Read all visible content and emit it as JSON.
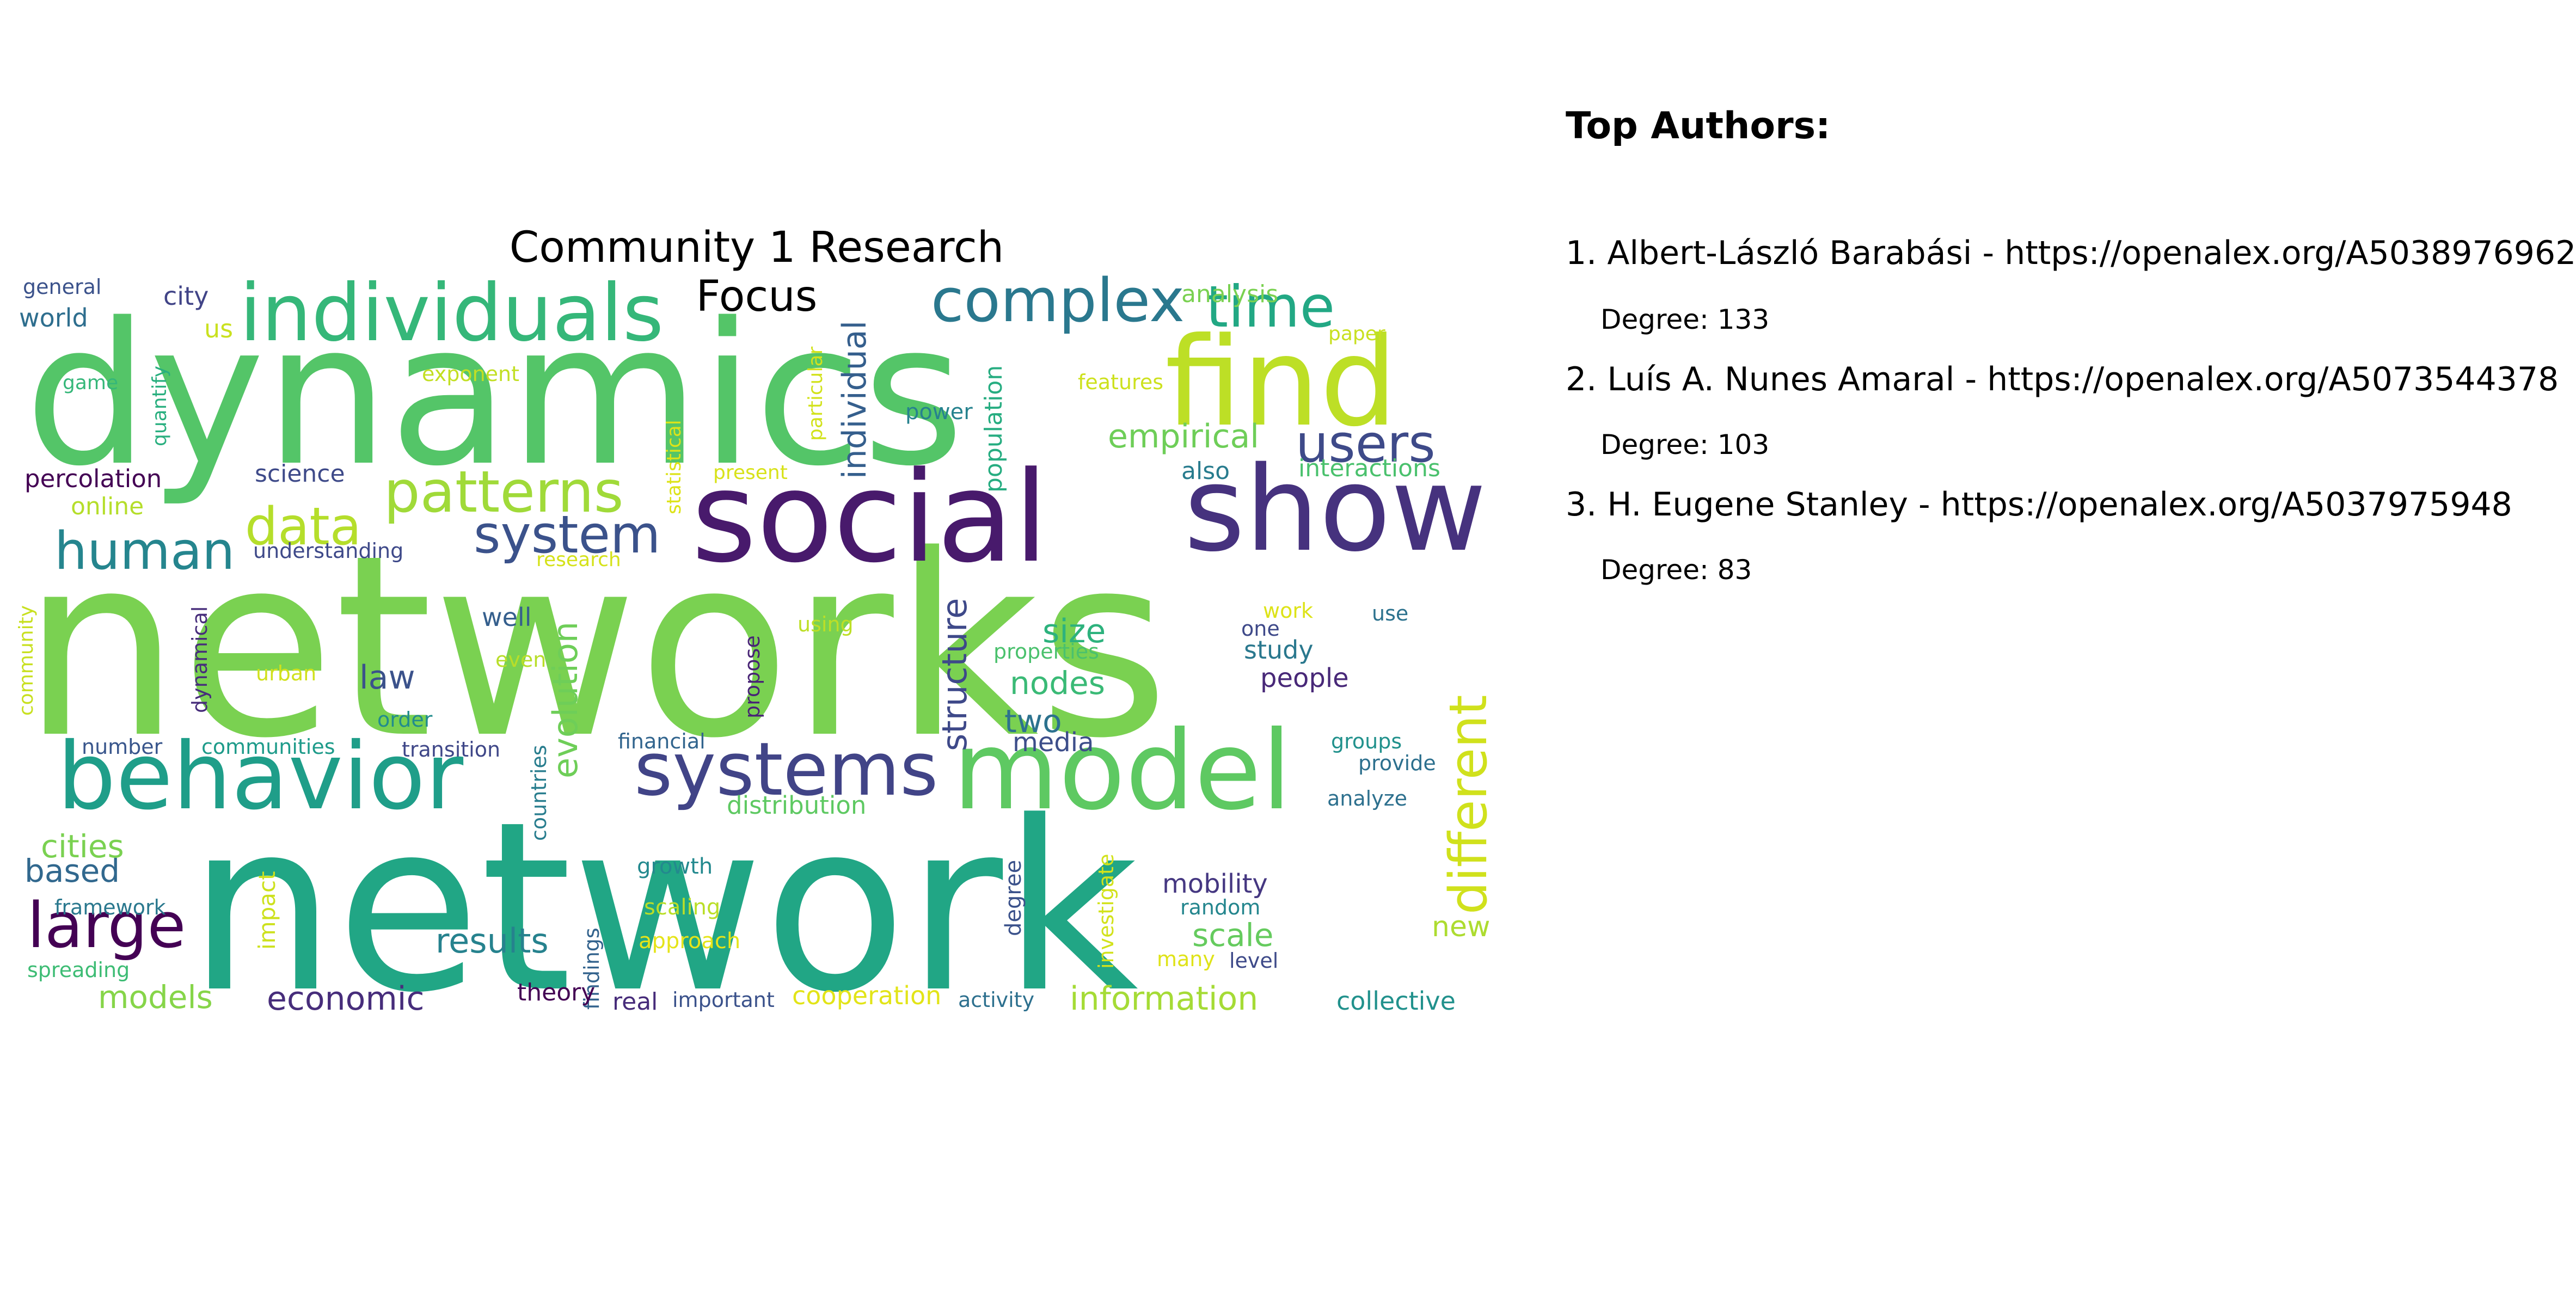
{
  "wordcloud": {
    "title": "Community 1 Research Focus",
    "words": [
      {
        "text": "networks",
        "color": "#7ad151"
      },
      {
        "text": "network",
        "color": "#21a685"
      },
      {
        "text": "dynamics",
        "color": "#54c568"
      },
      {
        "text": "social",
        "color": "#481a6c"
      },
      {
        "text": "show",
        "color": "#46327e"
      },
      {
        "text": "find",
        "color": "#bddf26"
      },
      {
        "text": "individuals",
        "color": "#35b779"
      },
      {
        "text": "complex",
        "color": "#2a788e"
      },
      {
        "text": "time",
        "color": "#22a884"
      },
      {
        "text": "model",
        "color": "#5ec962"
      },
      {
        "text": "behavior",
        "color": "#1f9e89"
      },
      {
        "text": "systems",
        "color": "#414487"
      },
      {
        "text": "patterns",
        "color": "#a0da39"
      },
      {
        "text": "system",
        "color": "#3b528b"
      },
      {
        "text": "users",
        "color": "#3e4a89"
      },
      {
        "text": "human",
        "color": "#25858e"
      },
      {
        "text": "data",
        "color": "#b5de2b"
      },
      {
        "text": "large",
        "color": "#440154"
      },
      {
        "text": "different",
        "color": "#d0e11c"
      },
      {
        "text": "empirical",
        "color": "#6ece58"
      },
      {
        "text": "individual",
        "color": "#355f8d"
      },
      {
        "text": "structure",
        "color": "#3e4989"
      },
      {
        "text": "evolution",
        "color": "#6ece58"
      },
      {
        "text": "results",
        "color": "#26828e"
      },
      {
        "text": "economic",
        "color": "#472d7b"
      },
      {
        "text": "information",
        "color": "#a5db36"
      },
      {
        "text": "cities",
        "color": "#7ad151"
      },
      {
        "text": "based",
        "color": "#31688e"
      },
      {
        "text": "models",
        "color": "#86d549"
      },
      {
        "text": "size",
        "color": "#2db27d"
      },
      {
        "text": "nodes",
        "color": "#3aba76"
      },
      {
        "text": "scale",
        "color": "#65cb5e"
      },
      {
        "text": "mobility",
        "color": "#453781"
      },
      {
        "text": "law",
        "color": "#3b528b"
      },
      {
        "text": "two",
        "color": "#2c728e"
      },
      {
        "text": "media",
        "color": "#3d4e8a"
      },
      {
        "text": "new",
        "color": "#addc30"
      },
      {
        "text": "study",
        "color": "#2a788e"
      },
      {
        "text": "people",
        "color": "#482878"
      },
      {
        "text": "collective",
        "color": "#21918c"
      },
      {
        "text": "cooperation",
        "color": "#e2e418"
      },
      {
        "text": "distribution",
        "color": "#5ec962"
      },
      {
        "text": "percolation",
        "color": "#440154"
      },
      {
        "text": "science",
        "color": "#3e4a89"
      },
      {
        "text": "online",
        "color": "#b5de2b"
      },
      {
        "text": "analysis",
        "color": "#7ad151"
      },
      {
        "text": "interactions",
        "color": "#4ac16d"
      },
      {
        "text": "also",
        "color": "#287c8e"
      },
      {
        "text": "population",
        "color": "#27ad81"
      },
      {
        "text": "power",
        "color": "#26828e"
      },
      {
        "text": "features",
        "color": "#cde11d"
      },
      {
        "text": "paper",
        "color": "#c8e020"
      },
      {
        "text": "particular",
        "color": "#d2e21b"
      },
      {
        "text": "statistical",
        "color": "#dde318"
      },
      {
        "text": "present",
        "color": "#d8e219"
      },
      {
        "text": "research",
        "color": "#d5e21a"
      },
      {
        "text": "understanding",
        "color": "#3e4989"
      },
      {
        "text": "exponent",
        "color": "#c2df23"
      },
      {
        "text": "quantify",
        "color": "#29af7f"
      },
      {
        "text": "game",
        "color": "#35b779"
      },
      {
        "text": "world",
        "color": "#2e6e8e"
      },
      {
        "text": "general",
        "color": "#3b528b"
      },
      {
        "text": "city",
        "color": "#414487"
      },
      {
        "text": "us",
        "color": "#cae11f"
      },
      {
        "text": "well",
        "color": "#355f8d"
      },
      {
        "text": "even",
        "color": "#b8de29"
      },
      {
        "text": "using",
        "color": "#bddf26"
      },
      {
        "text": "propose",
        "color": "#482475"
      },
      {
        "text": "properties",
        "color": "#4ac16d"
      },
      {
        "text": "work",
        "color": "#dde318"
      },
      {
        "text": "one",
        "color": "#3e4989"
      },
      {
        "text": "use",
        "color": "#2c728e"
      },
      {
        "text": "urban",
        "color": "#d0e11c"
      },
      {
        "text": "dynamical",
        "color": "#472d7b"
      },
      {
        "text": "community",
        "color": "#c8e020"
      },
      {
        "text": "order",
        "color": "#228c8d"
      },
      {
        "text": "number",
        "color": "#39568c"
      },
      {
        "text": "communities",
        "color": "#1e9b8a"
      },
      {
        "text": "transition",
        "color": "#3f4788"
      },
      {
        "text": "financial",
        "color": "#32658e"
      },
      {
        "text": "countries",
        "color": "#287d8e"
      },
      {
        "text": "groups",
        "color": "#21918c"
      },
      {
        "text": "provide",
        "color": "#2d708e"
      },
      {
        "text": "analyze",
        "color": "#2d708e"
      },
      {
        "text": "framework",
        "color": "#2a788e"
      },
      {
        "text": "spreading",
        "color": "#3dbc74"
      },
      {
        "text": "impact",
        "color": "#cde11d"
      },
      {
        "text": "findings",
        "color": "#33638d"
      },
      {
        "text": "growth",
        "color": "#23898e"
      },
      {
        "text": "scaling",
        "color": "#bade28"
      },
      {
        "text": "approach",
        "color": "#e5e419"
      },
      {
        "text": "degree",
        "color": "#3b528b"
      },
      {
        "text": "investigate",
        "color": "#d2e21b"
      },
      {
        "text": "random",
        "color": "#24868e"
      },
      {
        "text": "many",
        "color": "#dfe318"
      },
      {
        "text": "level",
        "color": "#3e4a89"
      },
      {
        "text": "theory",
        "color": "#440154"
      },
      {
        "text": "real",
        "color": "#472c7a"
      },
      {
        "text": "important",
        "color": "#3b528b"
      },
      {
        "text": "activity",
        "color": "#2d708e"
      }
    ]
  },
  "authors": {
    "heading": "Top Authors:",
    "items": [
      {
        "line": "1. Albert-László Barabási - https://openalex.org/A5038976962",
        "degree": "Degree: 133"
      },
      {
        "line": "2. Luís A. Nunes Amaral - https://openalex.org/A5073544378",
        "degree": "Degree: 103"
      },
      {
        "line": "3. H. Eugene Stanley - https://openalex.org/A5037975948",
        "degree": "Degree: 83"
      }
    ]
  }
}
